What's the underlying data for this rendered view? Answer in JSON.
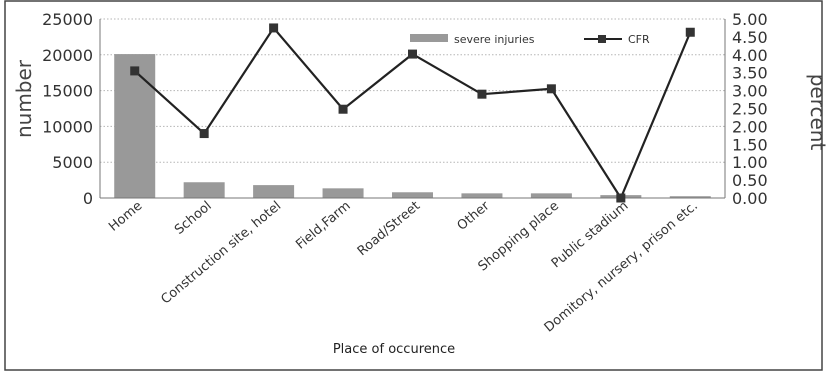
{
  "chart_data": {
    "type": "bar+line",
    "categories": [
      "Home",
      "School",
      "Construction site, hotel",
      "Field,Farm",
      "Road/Street",
      "Other",
      "Shopping place",
      "Public stadium",
      "Domitory, nursery, prison etc."
    ],
    "series": [
      {
        "name": "severe injuries",
        "type": "bar",
        "axis": "left",
        "color": "#999999",
        "values": [
          20100,
          2200,
          1800,
          1350,
          800,
          650,
          650,
          400,
          250
        ]
      },
      {
        "name": "CFR",
        "type": "line",
        "axis": "right",
        "color": "#222222",
        "values": [
          3.55,
          1.8,
          4.75,
          2.48,
          4.02,
          2.9,
          3.05,
          0.0,
          4.63
        ]
      }
    ],
    "xlabel": "Place of occurence",
    "ylabel": "number",
    "ylabel_right": "percent",
    "ylim": [
      0,
      25000
    ],
    "ylim_right": [
      0,
      5
    ],
    "yticks": [
      "0",
      "5000",
      "10000",
      "15000",
      "20000",
      "25000"
    ],
    "yticks_right": [
      "0.00",
      "0.50",
      "1.00",
      "1.50",
      "2.00",
      "2.50",
      "3.00",
      "3.50",
      "4.00",
      "4.50",
      "5.00"
    ],
    "grid": "horizontal dotted",
    "legend": "top-right"
  }
}
